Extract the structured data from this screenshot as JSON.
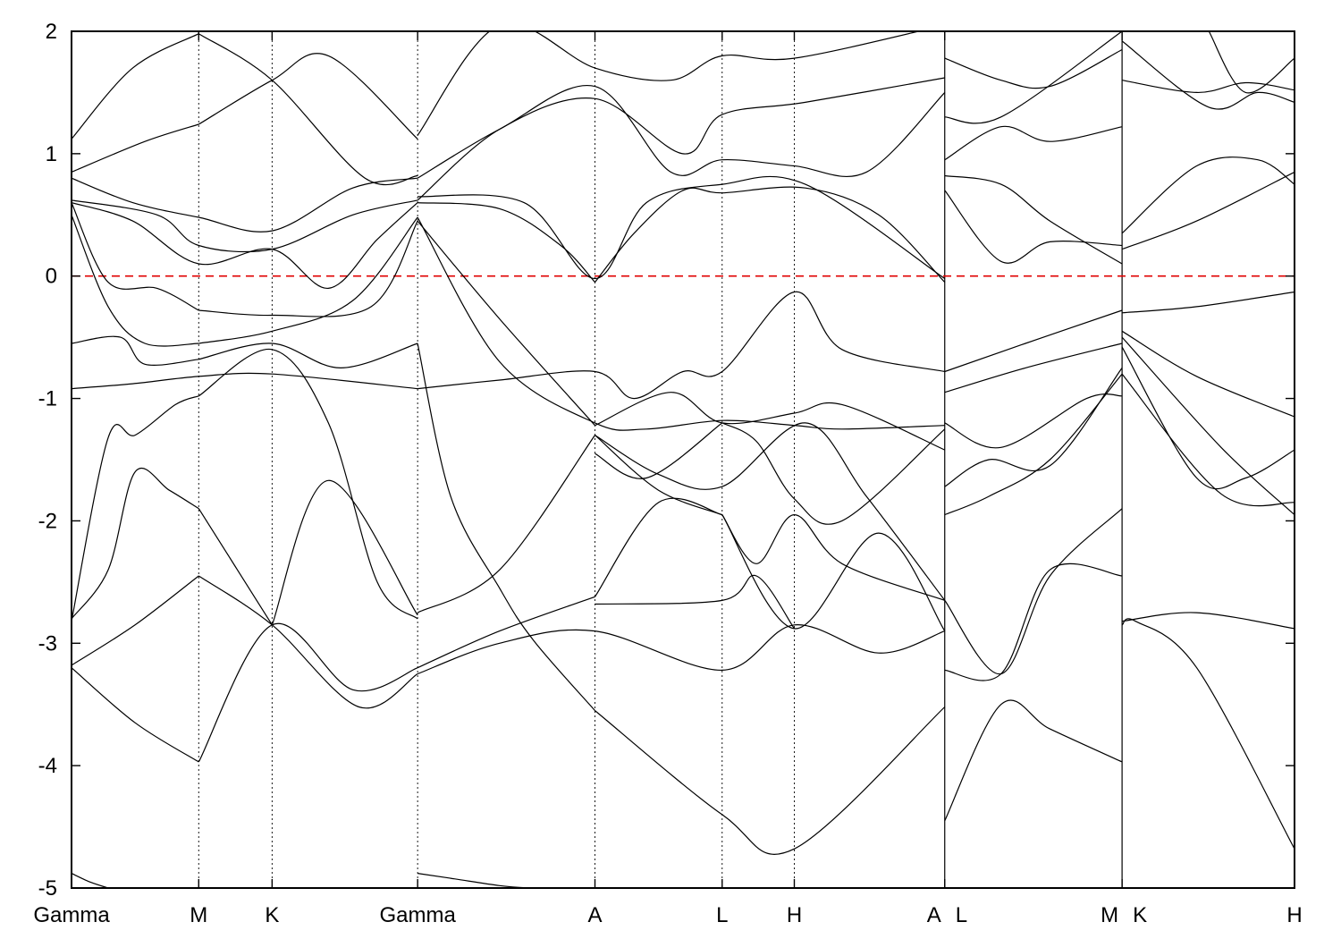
{
  "chart_data": {
    "type": "line",
    "title": "",
    "xlabel": "",
    "ylabel": "",
    "ylim": [
      -5,
      2
    ],
    "yticks": [
      -5,
      -4,
      -3,
      -2,
      -1,
      0,
      1,
      2
    ],
    "xlim": [
      0,
      10
    ],
    "fermi_level": 0,
    "fermi_color": "#e00000",
    "line_color": "#000000",
    "grid": false,
    "kpath": [
      {
        "label": "Gamma",
        "x": 0,
        "align": "start"
      },
      {
        "label": "M",
        "x": 1.04,
        "align": "middle"
      },
      {
        "label": "K",
        "x": 1.64,
        "align": "middle"
      },
      {
        "label": "Gamma",
        "x": 2.83,
        "align": "middle"
      },
      {
        "label": "A",
        "x": 4.28,
        "align": "middle"
      },
      {
        "label": "L",
        "x": 5.32,
        "align": "middle"
      },
      {
        "label": "H",
        "x": 5.91,
        "align": "middle"
      },
      {
        "label": "A",
        "x": 7.14,
        "align": "end"
      },
      {
        "label": "L",
        "x": 7.14,
        "align": "start"
      },
      {
        "label": "M",
        "x": 8.59,
        "align": "end"
      },
      {
        "label": "K",
        "x": 8.59,
        "align": "start"
      },
      {
        "label": "H",
        "x": 10,
        "align": "end"
      }
    ],
    "path_breaks": [
      7.14,
      8.59
    ],
    "series": [
      {
        "x": [
          0,
          0.52,
          1.04
        ],
        "y": [
          -3.2,
          -3.65,
          -3.97
        ]
      },
      {
        "x": [
          1.04,
          1.64,
          2.3,
          2.83
        ],
        "y": [
          -3.97,
          -2.85,
          -3.38,
          -3.2
        ]
      },
      {
        "x": [
          0,
          0.52,
          1.04
        ],
        "y": [
          -3.18,
          -2.85,
          -2.45
        ]
      },
      {
        "x": [
          1.04,
          1.64,
          2.35,
          2.83
        ],
        "y": [
          -2.45,
          -2.85,
          -3.52,
          -3.25
        ]
      },
      {
        "x": [
          0,
          0.3,
          0.52,
          0.8,
          1.04
        ],
        "y": [
          -2.8,
          -2.4,
          -1.6,
          -1.75,
          -1.9
        ]
      },
      {
        "x": [
          1.04,
          1.64
        ],
        "y": [
          -1.9,
          -2.85
        ]
      },
      {
        "x": [
          1.64,
          2.1,
          2.83
        ],
        "y": [
          -2.85,
          -1.67,
          -2.77
        ]
      },
      {
        "x": [
          0,
          0.3,
          0.52,
          0.85,
          1.04
        ],
        "y": [
          -2.82,
          -1.32,
          -1.3,
          -1.05,
          -0.98
        ]
      },
      {
        "x": [
          1.04,
          1.64,
          2.1,
          2.5,
          2.83
        ],
        "y": [
          -0.98,
          -0.6,
          -1.2,
          -2.5,
          -2.8
        ]
      },
      {
        "x": [
          0,
          0.5,
          1.04,
          1.64,
          2.83
        ],
        "y": [
          -0.92,
          -0.88,
          -0.82,
          -0.8,
          -0.92
        ]
      },
      {
        "x": [
          2.83,
          3.5,
          4.28,
          4.6,
          5.0,
          5.32,
          5.91,
          6.3,
          7.14
        ],
        "y": [
          -0.92,
          -0.85,
          -0.78,
          -1.0,
          -0.78,
          -0.78,
          -0.13,
          -0.6,
          -0.78
        ]
      },
      {
        "x": [
          0,
          0.4,
          0.6,
          1.04
        ],
        "y": [
          -0.55,
          -0.5,
          -0.72,
          -0.68
        ]
      },
      {
        "x": [
          1.04,
          1.64,
          2.2,
          2.83
        ],
        "y": [
          -0.68,
          -0.55,
          -0.75,
          -0.55
        ]
      },
      {
        "x": [
          2.83,
          3.1,
          3.5,
          3.78,
          4.28
        ],
        "y": [
          -0.55,
          -1.8,
          -2.55,
          -2.98,
          -3.55
        ]
      },
      {
        "x": [
          4.28,
          5.32,
          5.91,
          7.14
        ],
        "y": [
          -3.55,
          -4.4,
          -4.68,
          -3.52
        ]
      },
      {
        "x": [
          0,
          0.3,
          0.6,
          1.04
        ],
        "y": [
          0.5,
          -0.25,
          -0.55,
          -0.55
        ]
      },
      {
        "x": [
          1.04,
          1.64,
          2.3,
          2.83
        ],
        "y": [
          -0.55,
          -0.45,
          -0.2,
          0.48
        ]
      },
      {
        "x": [
          2.83,
          3.5,
          4.28,
          4.7,
          5.32,
          5.91,
          6.3,
          7.14
        ],
        "y": [
          0.48,
          -0.7,
          -1.2,
          -1.25,
          -1.18,
          -1.22,
          -1.25,
          -1.22
        ]
      },
      {
        "x": [
          0,
          0.3,
          0.7,
          1.04
        ],
        "y": [
          0.6,
          -0.05,
          -0.1,
          -0.28
        ]
      },
      {
        "x": [
          1.04,
          1.64,
          2.45,
          2.83
        ],
        "y": [
          -0.28,
          -0.32,
          -0.25,
          0.45
        ]
      },
      {
        "x": [
          2.83,
          3.5,
          4.28
        ],
        "y": [
          0.45,
          -0.35,
          -1.22
        ]
      },
      {
        "x": [
          4.28,
          4.9,
          5.32,
          5.91,
          6.3,
          7.14
        ],
        "y": [
          -1.22,
          -0.95,
          -1.2,
          -1.12,
          -1.05,
          -1.42
        ]
      },
      {
        "x": [
          0,
          0.5,
          1.04,
          1.64,
          2.1,
          2.5,
          2.83
        ],
        "y": [
          0.6,
          0.45,
          0.1,
          0.22,
          -0.1,
          0.3,
          0.6
        ]
      },
      {
        "x": [
          2.83,
          3.5,
          4.0,
          4.28
        ],
        "y": [
          0.6,
          0.55,
          0.25,
          -0.05
        ]
      },
      {
        "x": [
          4.28,
          4.6,
          5.0,
          5.32,
          6.0,
          6.6,
          7.14
        ],
        "y": [
          -0.05,
          0.35,
          0.7,
          0.68,
          0.72,
          0.5,
          -0.05
        ]
      },
      {
        "x": [
          0,
          0.7,
          1.04,
          1.64,
          2.3,
          2.83
        ],
        "y": [
          0.62,
          0.5,
          0.25,
          0.22,
          0.5,
          0.62
        ]
      },
      {
        "x": [
          2.83,
          3.7,
          4.28,
          4.7,
          5.32,
          6.0,
          7.14
        ],
        "y": [
          0.65,
          0.6,
          -0.02,
          0.6,
          0.75,
          0.75,
          -0.02
        ]
      },
      {
        "x": [
          0,
          0.5,
          1.04,
          1.64,
          2.3,
          2.83
        ],
        "y": [
          0.8,
          0.6,
          0.48,
          0.37,
          0.72,
          0.8
        ]
      },
      {
        "x": [
          2.83,
          3.5,
          4.28,
          4.9,
          5.32,
          5.91,
          6.5,
          7.14
        ],
        "y": [
          0.8,
          1.2,
          1.55,
          0.85,
          0.95,
          0.9,
          0.85,
          1.5
        ]
      },
      {
        "x": [
          0,
          0.6,
          1.04
        ],
        "y": [
          0.85,
          1.1,
          1.24
        ]
      },
      {
        "x": [
          1.04,
          1.64,
          2.1,
          2.83
        ],
        "y": [
          1.24,
          1.6,
          1.8,
          1.12
        ]
      },
      {
        "x": [
          0,
          0.5,
          1.04
        ],
        "y": [
          1.12,
          1.7,
          1.98
        ]
      },
      {
        "x": [
          1.04,
          1.64,
          2.4,
          2.83
        ],
        "y": [
          1.98,
          1.6,
          0.8,
          0.82
        ]
      },
      {
        "x": [
          2.83,
          3.5,
          4.28,
          4.9,
          5.32,
          5.91,
          7.14
        ],
        "y": [
          1.15,
          2.05,
          1.7,
          1.6,
          1.8,
          1.78,
          2.05
        ]
      },
      {
        "x": [
          2.83,
          3.5,
          4.28,
          5.0,
          5.32,
          6.0,
          7.14
        ],
        "y": [
          0.62,
          1.2,
          1.45,
          1.0,
          1.32,
          1.42,
          1.62
        ]
      },
      {
        "x": [
          4.28,
          4.8,
          5.32,
          6.0,
          6.5,
          7.14
        ],
        "y": [
          -1.3,
          -1.62,
          -1.72,
          -1.2,
          -1.8,
          -2.65
        ]
      },
      {
        "x": [
          4.28,
          4.7,
          5.32
        ],
        "y": [
          -1.45,
          -1.65,
          -1.2
        ]
      },
      {
        "x": [
          5.32,
          5.6,
          5.91,
          6.3,
          7.14
        ],
        "y": [
          -1.2,
          -1.35,
          -1.82,
          -2.0,
          -1.25
        ]
      },
      {
        "x": [
          2.83,
          3.5,
          4.28
        ],
        "y": [
          -2.75,
          -2.4,
          -1.3
        ]
      },
      {
        "x": [
          4.28,
          4.8,
          5.32
        ],
        "y": [
          -1.3,
          -1.75,
          -1.95
        ]
      },
      {
        "x": [
          5.32,
          5.6,
          5.91,
          6.3,
          7.14
        ],
        "y": [
          -1.95,
          -2.35,
          -1.95,
          -2.35,
          -2.65
        ]
      },
      {
        "x": [
          2.83,
          3.5,
          4.28
        ],
        "y": [
          -3.2,
          -2.9,
          -2.62
        ]
      },
      {
        "x": [
          4.28,
          4.8,
          5.32
        ],
        "y": [
          -2.62,
          -1.85,
          -1.95
        ]
      },
      {
        "x": [
          5.32,
          5.91,
          6.6,
          7.14
        ],
        "y": [
          -1.95,
          -2.88,
          -2.1,
          -2.9
        ]
      },
      {
        "x": [
          2.83,
          3.5,
          4.28,
          5.32,
          5.91,
          6.6,
          7.14
        ],
        "y": [
          -3.25,
          -3.0,
          -2.9,
          -3.22,
          -2.85,
          -3.08,
          -2.9
        ]
      },
      {
        "x": [
          4.28,
          5.32,
          5.6,
          5.91
        ],
        "y": [
          -2.68,
          -2.65,
          -2.45,
          -2.88
        ]
      },
      {
        "x": [
          2.83,
          3.1,
          3.5,
          3.78,
          4.28
        ],
        "y": [
          -4.88,
          -4.92,
          -4.98,
          -5.0,
          -5.0
        ]
      },
      {
        "x": [
          0,
          0.15,
          0.3
        ],
        "y": [
          -4.88,
          -4.95,
          -5.0
        ]
      },
      {
        "x": [
          7.14,
          7.6,
          8.0,
          8.59
        ],
        "y": [
          -4.45,
          -3.5,
          -3.7,
          -3.97
        ]
      },
      {
        "x": [
          7.14,
          7.6,
          8.0,
          8.59
        ],
        "y": [
          -3.22,
          -3.25,
          -2.4,
          -2.45
        ]
      },
      {
        "x": [
          7.14,
          7.6,
          8.0,
          8.59
        ],
        "y": [
          -2.65,
          -3.25,
          -2.45,
          -1.9
        ]
      },
      {
        "x": [
          7.14,
          7.5,
          8.0,
          8.59
        ],
        "y": [
          -1.95,
          -1.8,
          -1.5,
          -0.8
        ]
      },
      {
        "x": [
          7.14,
          7.5,
          8.0,
          8.59
        ],
        "y": [
          -1.72,
          -1.5,
          -1.55,
          -0.75
        ]
      },
      {
        "x": [
          7.14,
          7.6,
          8.3,
          8.59
        ],
        "y": [
          -1.2,
          -1.4,
          -1.0,
          -0.98
        ]
      },
      {
        "x": [
          7.14,
          7.8,
          8.59
        ],
        "y": [
          -0.95,
          -0.75,
          -0.55
        ]
      },
      {
        "x": [
          7.14,
          7.8,
          8.59
        ],
        "y": [
          -0.78,
          -0.55,
          -0.28
        ]
      },
      {
        "x": [
          7.14,
          7.6,
          8.0,
          8.59
        ],
        "y": [
          0.7,
          0.12,
          0.28,
          0.25
        ]
      },
      {
        "x": [
          7.14,
          7.6,
          8.0,
          8.59
        ],
        "y": [
          0.82,
          0.75,
          0.45,
          0.1
        ]
      },
      {
        "x": [
          7.14,
          7.6,
          8.0,
          8.59
        ],
        "y": [
          0.95,
          1.22,
          1.1,
          1.22
        ]
      },
      {
        "x": [
          7.14,
          7.6,
          8.59
        ],
        "y": [
          1.3,
          1.3,
          2.0
        ]
      },
      {
        "x": [
          7.14,
          7.6,
          8.0,
          8.59
        ],
        "y": [
          1.78,
          1.6,
          1.55,
          1.85
        ]
      },
      {
        "x": [
          8.59,
          8.7,
          9.2,
          10
        ],
        "y": [
          -2.85,
          -2.82,
          -3.2,
          -4.68
        ]
      },
      {
        "x": [
          8.59,
          9.2,
          10
        ],
        "y": [
          -2.82,
          -2.75,
          -2.88
        ]
      },
      {
        "x": [
          8.59,
          9.2,
          9.6,
          10
        ],
        "y": [
          -0.58,
          -1.65,
          -1.65,
          -1.42
        ]
      },
      {
        "x": [
          8.59,
          9.4,
          10
        ],
        "y": [
          -0.8,
          -1.78,
          -1.85
        ]
      },
      {
        "x": [
          8.59,
          9.4,
          10
        ],
        "y": [
          -0.5,
          -1.4,
          -1.95
        ]
      },
      {
        "x": [
          8.59,
          9.2,
          10
        ],
        "y": [
          -0.45,
          -0.82,
          -1.15
        ]
      },
      {
        "x": [
          8.59,
          9.2,
          10
        ],
        "y": [
          -0.3,
          -0.25,
          -0.13
        ]
      },
      {
        "x": [
          8.59,
          9.2,
          10
        ],
        "y": [
          0.22,
          0.45,
          0.85
        ]
      },
      {
        "x": [
          8.59,
          9.2,
          9.7,
          10
        ],
        "y": [
          0.35,
          0.9,
          0.95,
          0.75
        ]
      },
      {
        "x": [
          8.59,
          9.2,
          9.6,
          10
        ],
        "y": [
          1.6,
          1.5,
          1.58,
          1.52
        ]
      },
      {
        "x": [
          8.59,
          9.3,
          9.7,
          10
        ],
        "y": [
          1.92,
          1.38,
          1.5,
          1.42
        ]
      },
      {
        "x": [
          9.3,
          9.6,
          10
        ],
        "y": [
          2.0,
          1.5,
          1.78
        ]
      }
    ]
  }
}
